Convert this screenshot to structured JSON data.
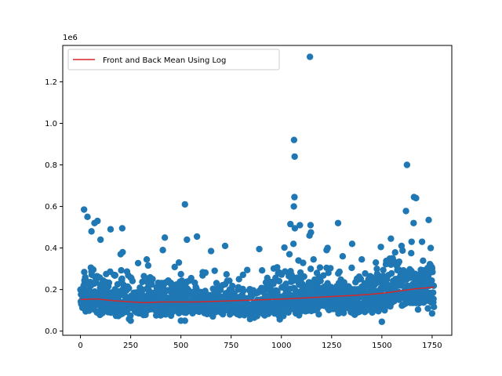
{
  "chart_data": {
    "type": "scatter",
    "title": "",
    "xlabel": "",
    "ylabel": "",
    "offset_text": "1e6",
    "xlim": [
      -88,
      1848
    ],
    "ylim": [
      -0.02,
      1.375
    ],
    "x_ticks": [
      0,
      250,
      500,
      750,
      1000,
      1250,
      1500,
      1750
    ],
    "y_ticks": [
      0.0,
      0.2,
      0.4,
      0.6,
      0.8,
      1.0,
      1.2
    ],
    "y_tick_labels": [
      "0.0",
      "0.2",
      "0.4",
      "0.6",
      "0.8",
      "1.0",
      "1.2"
    ],
    "grid": false,
    "legend_position": "upper left",
    "colors": {
      "points": "#1f77b4",
      "line": "#d62728"
    },
    "series": [
      {
        "kind": "scatter",
        "n_points": 1760,
        "baseline_segments": [
          [
            0,
            0.15,
            0.04
          ],
          [
            60,
            0.17,
            0.06
          ],
          [
            140,
            0.14,
            0.05
          ],
          [
            300,
            0.12,
            0.04
          ],
          [
            420,
            0.14,
            0.05
          ],
          [
            540,
            0.13,
            0.04
          ],
          [
            700,
            0.13,
            0.04
          ],
          [
            850,
            0.12,
            0.04
          ],
          [
            1000,
            0.14,
            0.05
          ],
          [
            1100,
            0.15,
            0.05
          ],
          [
            1300,
            0.14,
            0.04
          ],
          [
            1480,
            0.15,
            0.05
          ],
          [
            1580,
            0.2,
            0.07
          ],
          [
            1760,
            0.2,
            0.06
          ]
        ],
        "outliers": [
          [
            1142,
            1.32
          ],
          [
            1063,
            0.92
          ],
          [
            1066,
            0.84
          ],
          [
            1625,
            0.8
          ],
          [
            1660,
            0.645
          ],
          [
            1670,
            0.64
          ],
          [
            1065,
            0.645
          ],
          [
            1062,
            0.6
          ],
          [
            520,
            0.61
          ],
          [
            18,
            0.585
          ],
          [
            1620,
            0.578
          ],
          [
            1733,
            0.535
          ],
          [
            1282,
            0.52
          ],
          [
            35,
            0.55
          ],
          [
            70,
            0.52
          ],
          [
            85,
            0.53
          ],
          [
            1658,
            0.52
          ],
          [
            1045,
            0.515
          ],
          [
            1092,
            0.51
          ],
          [
            1145,
            0.51
          ],
          [
            1067,
            0.495
          ],
          [
            1140,
            0.46
          ],
          [
            1147,
            0.475
          ],
          [
            208,
            0.495
          ],
          [
            150,
            0.49
          ],
          [
            530,
            0.44
          ],
          [
            420,
            0.45
          ],
          [
            580,
            0.455
          ],
          [
            1545,
            0.445
          ],
          [
            1700,
            0.43
          ],
          [
            1648,
            0.43
          ],
          [
            1060,
            0.42
          ],
          [
            1598,
            0.41
          ],
          [
            1352,
            0.42
          ],
          [
            720,
            0.41
          ],
          [
            410,
            0.39
          ],
          [
            1225,
            0.39
          ],
          [
            1495,
            0.405
          ],
          [
            890,
            0.395
          ],
          [
            1040,
            0.37
          ],
          [
            1230,
            0.4
          ],
          [
            650,
            0.385
          ],
          [
            210,
            0.38
          ],
          [
            200,
            0.37
          ],
          [
            1743,
            0.4
          ],
          [
            55,
            0.48
          ],
          [
            100,
            0.44
          ],
          [
            330,
            0.345
          ],
          [
            490,
            0.33
          ],
          [
            1400,
            0.345
          ],
          [
            1085,
            0.34
          ],
          [
            1160,
            0.345
          ],
          [
            1305,
            0.36
          ],
          [
            1470,
            0.33
          ],
          [
            500,
            0.05
          ],
          [
            520,
            0.05
          ],
          [
            250,
            0.05
          ],
          [
            1500,
            0.045
          ],
          [
            1750,
            0.085
          ]
        ]
      },
      {
        "kind": "line",
        "name": "Front and Back Mean Using Log",
        "x": [
          0,
          80,
          160,
          240,
          320,
          400,
          480,
          560,
          640,
          720,
          800,
          880,
          960,
          1040,
          1120,
          1200,
          1280,
          1360,
          1440,
          1520,
          1600,
          1680,
          1760
        ],
        "y": [
          0.152,
          0.155,
          0.147,
          0.141,
          0.137,
          0.14,
          0.14,
          0.14,
          0.142,
          0.145,
          0.148,
          0.15,
          0.153,
          0.156,
          0.16,
          0.164,
          0.168,
          0.172,
          0.177,
          0.184,
          0.195,
          0.205,
          0.212
        ]
      }
    ]
  }
}
